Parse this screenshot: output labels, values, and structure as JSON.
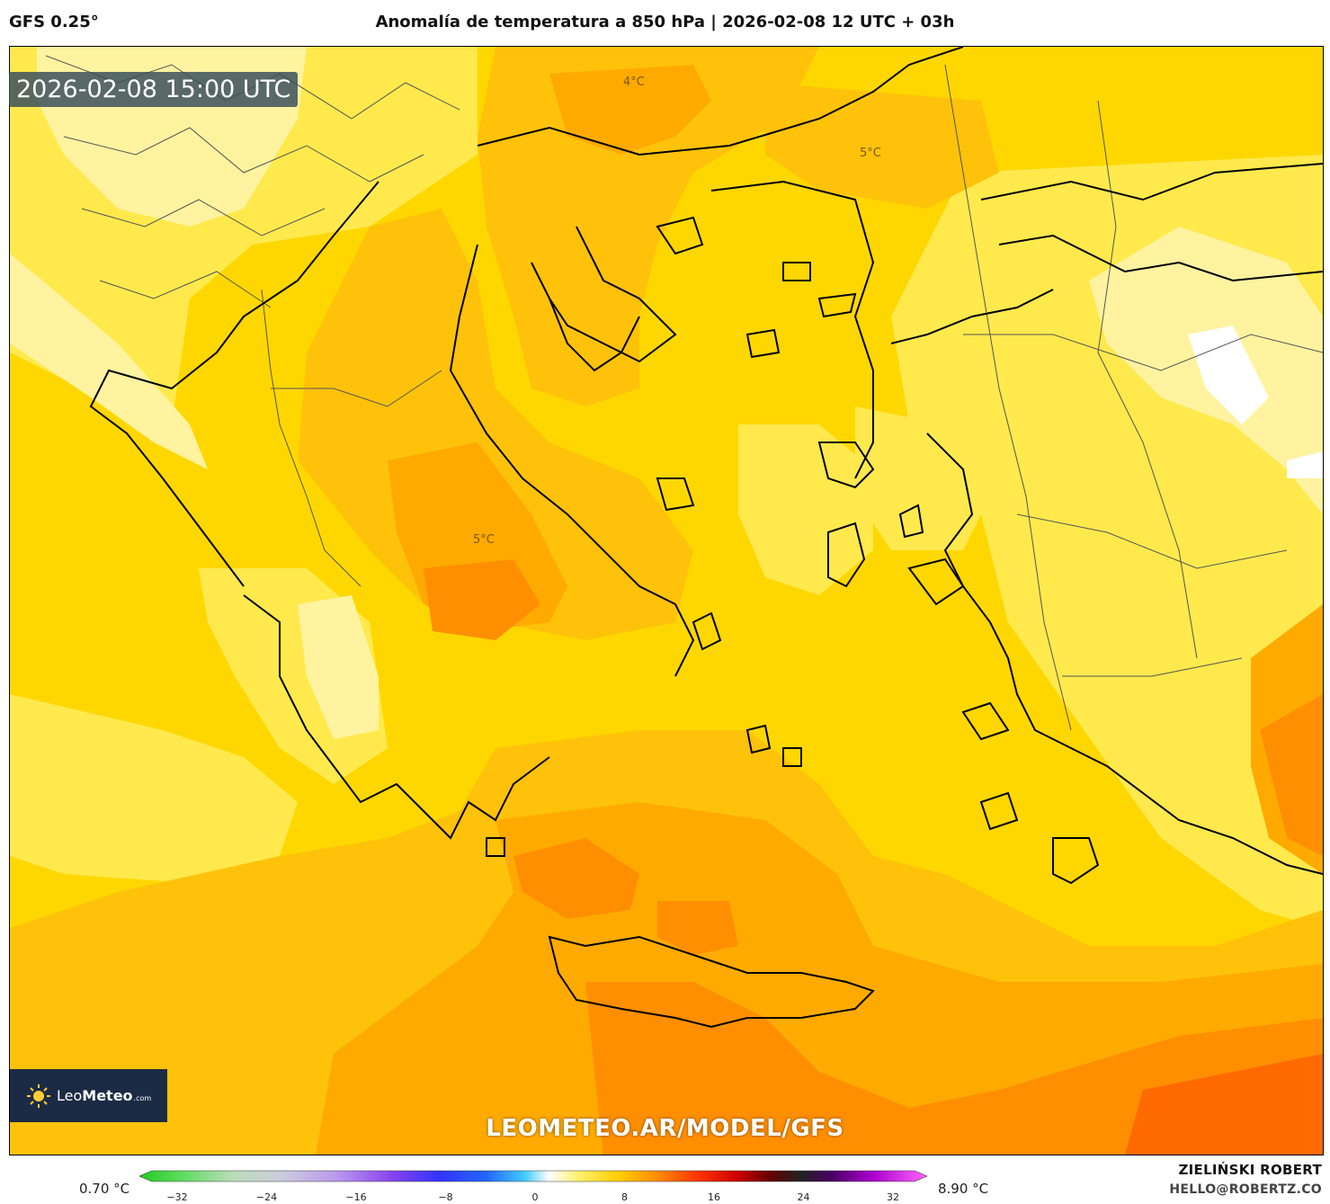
{
  "header": {
    "model": "GFS 0.25°",
    "title": "Anomalía de temperatura a 850 hPa | 2026-02-08 12 UTC + 03h"
  },
  "map": {
    "timestamp": "2026-02-08 15:00 UTC",
    "contour_labels": [
      "4°C",
      "5°C",
      "5°C"
    ],
    "watermark": "LEOMETEO.AR/MODEL/GFS"
  },
  "logo": {
    "leo": "Leo",
    "meteo": "Meteo",
    "com": ".com"
  },
  "colorbar": {
    "min_label": "0.70 °C",
    "max_label": "8.90 °C",
    "ticks": [
      "−32",
      "−24",
      "−16",
      "−8",
      "0",
      "8",
      "16",
      "24",
      "32"
    ]
  },
  "credits": {
    "author": "ZIELIŃSKI ROBERT",
    "email": "HELLO@ROBERTZ.CO"
  },
  "colors": {
    "base": "#ffd700",
    "warm_1": "#ffc20a",
    "warm_2": "#ffaa00",
    "warm_3": "#ff8f00",
    "warm_4": "#ff6a00",
    "cool_1": "#ffe94d",
    "cool_2": "#fff3a0"
  }
}
